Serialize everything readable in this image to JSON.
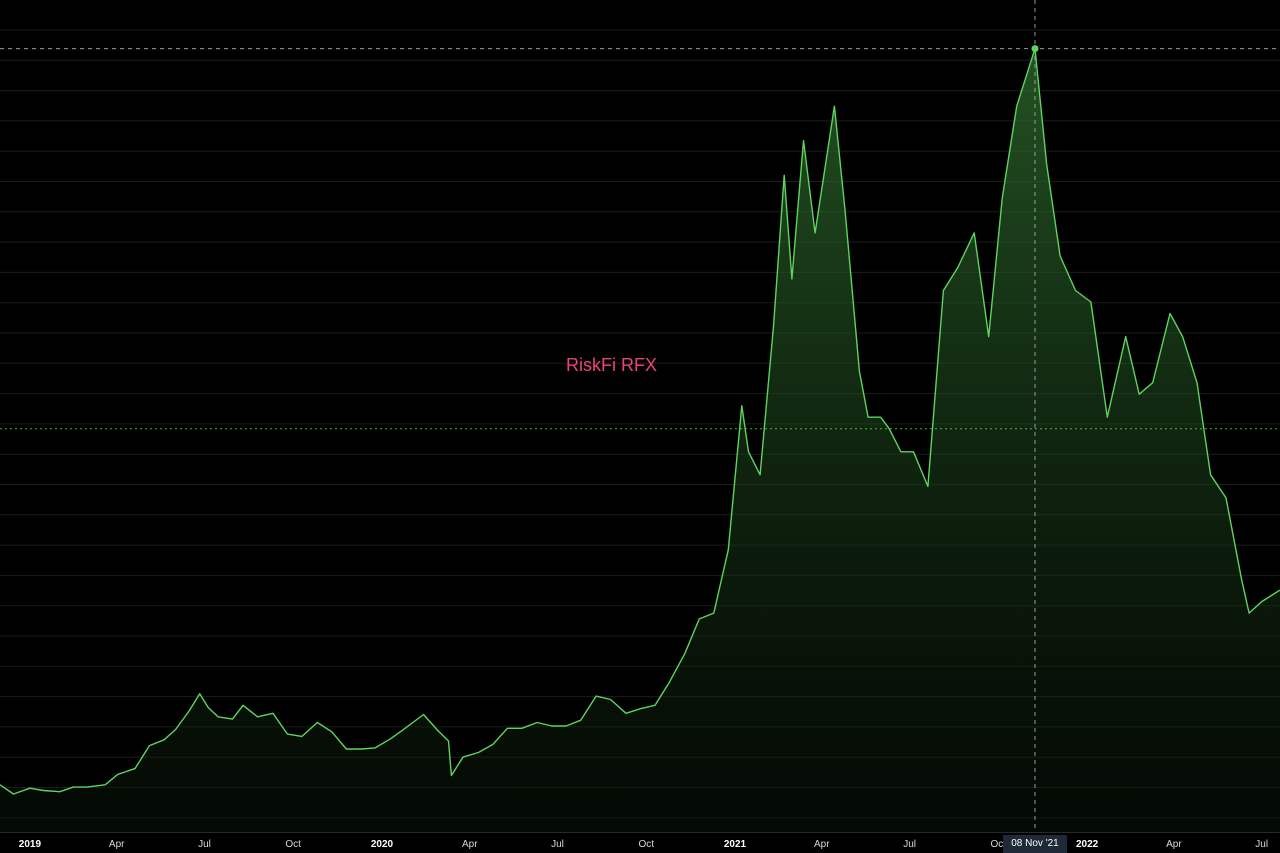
{
  "chart_data": {
    "type": "area",
    "title": "RiskFi RFX",
    "xlabel": "",
    "ylabel": "",
    "grid": true,
    "colors": {
      "background": "#000000",
      "line": "#5ed45e",
      "fill_top": "#2f6e2f",
      "fill_bottom": "#0a1a0a",
      "grid": "#1c1c1c",
      "crosshair": "#9a9a9a",
      "reference_line": "#5ed45e",
      "title": "#e8457a"
    },
    "x_ticks": [
      {
        "label": "2019",
        "date": "2019-01-01",
        "year": true
      },
      {
        "label": "Apr",
        "date": "2019-04-01",
        "year": false
      },
      {
        "label": "Jul",
        "date": "2019-07-01",
        "year": false
      },
      {
        "label": "Oct",
        "date": "2019-10-01",
        "year": false
      },
      {
        "label": "2020",
        "date": "2020-01-01",
        "year": true
      },
      {
        "label": "Apr",
        "date": "2020-04-01",
        "year": false
      },
      {
        "label": "Jul",
        "date": "2020-07-01",
        "year": false
      },
      {
        "label": "Oct",
        "date": "2020-10-01",
        "year": false
      },
      {
        "label": "2021",
        "date": "2021-01-01",
        "year": true
      },
      {
        "label": "Apr",
        "date": "2021-04-01",
        "year": false
      },
      {
        "label": "Jul",
        "date": "2021-07-01",
        "year": false
      },
      {
        "label": "Oct",
        "date": "2021-10-01",
        "year": false
      },
      {
        "label": "2022",
        "date": "2022-01-01",
        "year": true
      },
      {
        "label": "Apr",
        "date": "2022-04-01",
        "year": false
      },
      {
        "label": "Jul",
        "date": "2022-07-01",
        "year": false
      }
    ],
    "crosshair": {
      "date": "2021-11-08",
      "label": "08 Nov '21",
      "value": 68000
    },
    "reference_value": 35000,
    "xlim": [
      "2018-12-01",
      "2022-07-20"
    ],
    "ylim": [
      0,
      71000
    ],
    "series": [
      {
        "x": [
          "2018-12-01",
          "2018-12-15",
          "2019-01-01",
          "2019-01-15",
          "2019-02-01",
          "2019-02-15",
          "2019-03-01",
          "2019-03-20",
          "2019-04-02",
          "2019-04-20",
          "2019-05-05",
          "2019-05-20",
          "2019-06-01",
          "2019-06-15",
          "2019-06-26",
          "2019-07-05",
          "2019-07-15",
          "2019-07-30",
          "2019-08-10",
          "2019-08-25",
          "2019-09-10",
          "2019-09-25",
          "2019-10-10",
          "2019-10-26",
          "2019-11-10",
          "2019-11-25",
          "2019-12-10",
          "2019-12-25",
          "2020-01-10",
          "2020-01-25",
          "2020-02-13",
          "2020-02-28",
          "2020-03-10",
          "2020-03-13",
          "2020-03-25",
          "2020-04-10",
          "2020-04-25",
          "2020-05-10",
          "2020-05-25",
          "2020-06-10",
          "2020-06-25",
          "2020-07-10",
          "2020-07-25",
          "2020-08-10",
          "2020-08-25",
          "2020-09-10",
          "2020-09-25",
          "2020-10-10",
          "2020-10-25",
          "2020-11-10",
          "2020-11-25",
          "2020-12-10",
          "2020-12-25",
          "2021-01-08",
          "2021-01-15",
          "2021-01-27",
          "2021-02-10",
          "2021-02-21",
          "2021-03-01",
          "2021-03-13",
          "2021-03-25",
          "2021-04-14",
          "2021-04-25",
          "2021-05-10",
          "2021-05-19",
          "2021-06-01",
          "2021-06-10",
          "2021-06-22",
          "2021-07-05",
          "2021-07-20",
          "2021-08-05",
          "2021-08-20",
          "2021-09-06",
          "2021-09-21",
          "2021-10-05",
          "2021-10-20",
          "2021-11-08",
          "2021-11-20",
          "2021-12-04",
          "2021-12-20",
          "2022-01-05",
          "2022-01-22",
          "2022-02-10",
          "2022-02-24",
          "2022-03-10",
          "2022-03-28",
          "2022-04-10",
          "2022-04-25",
          "2022-05-09",
          "2022-05-25",
          "2022-06-10",
          "2022-06-18",
          "2022-07-01",
          "2022-07-20"
        ],
        "values": [
          4100,
          3300,
          3800,
          3600,
          3500,
          3900,
          3900,
          4100,
          5000,
          5500,
          7500,
          8000,
          8900,
          10500,
          12000,
          10800,
          10000,
          9800,
          11000,
          10000,
          10300,
          8500,
          8300,
          9500,
          8700,
          7200,
          7200,
          7300,
          8100,
          9000,
          10200,
          8800,
          7900,
          4900,
          6500,
          6900,
          7600,
          9000,
          9000,
          9500,
          9200,
          9200,
          9700,
          11800,
          11500,
          10300,
          10700,
          11000,
          13000,
          15500,
          18500,
          19000,
          24500,
          37000,
          33000,
          31000,
          44000,
          57000,
          48000,
          60000,
          52000,
          63000,
          54000,
          40000,
          36000,
          36000,
          35000,
          33000,
          33000,
          30000,
          47000,
          49000,
          52000,
          43000,
          55000,
          63000,
          68000,
          58000,
          50000,
          47000,
          46000,
          36000,
          43000,
          38000,
          39000,
          45000,
          43000,
          39000,
          31000,
          29000,
          22000,
          19000,
          20000,
          21000
        ]
      }
    ]
  }
}
